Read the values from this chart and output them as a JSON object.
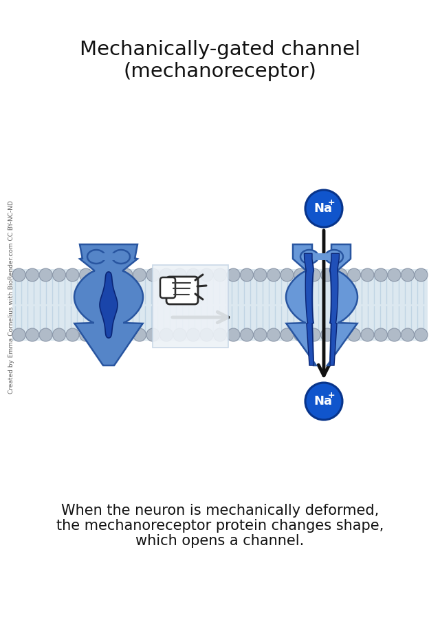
{
  "title_line1": "Mechanically-gated channel",
  "title_line2": "(mechanoreceptor)",
  "title_fontsize": 21,
  "caption_line1": "When the neuron is mechanically deformed,",
  "caption_line2": "the mechanoreceptor protein changes shape,",
  "caption_line3": "which opens a channel.",
  "caption_fontsize": 15,
  "watermark_text": "Created by Emma Cornelius with BioRender.com CC BY-NC-ND",
  "bg_color": "#ffffff",
  "membrane_bg_color": "#dce8f0",
  "tail_color": "#c0d4e4",
  "bead_color": "#b0bbc8",
  "bead_outline": "#8a96a8",
  "protein_outer_color": "#5585c8",
  "protein_outer_outline": "#2855a0",
  "protein_inner_color": "#1a45aa",
  "protein_inner_outline": "#0a2575",
  "protein_open_outer": "#6898d8",
  "protein_open_inner": "#2050b8",
  "na_circle_color": "#1055cc",
  "na_circle_outline": "#08348a",
  "na_text_color": "#ffffff",
  "arrow_color": "#111111",
  "highlight_box_color": "#edf2f7",
  "highlight_box_outline": "#c5d5e5"
}
